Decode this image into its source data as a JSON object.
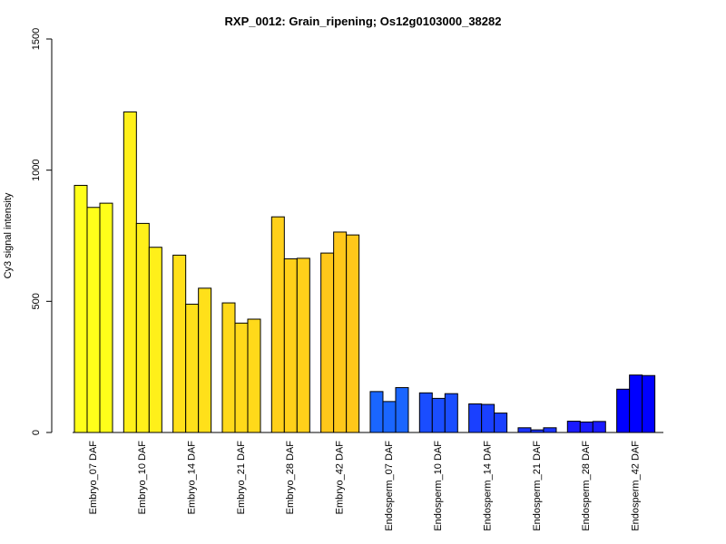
{
  "chart_data": {
    "type": "bar",
    "title": "RXP_0012: Grain_ripening; Os12g0103000_38282",
    "xlabel": "",
    "ylabel": "Cy3 signal intensity",
    "ylim": [
      0,
      1500
    ],
    "yticks": [
      0,
      500,
      1000,
      1500
    ],
    "grid": false,
    "legend": "none",
    "categories": [
      "Embryo_07 DAF",
      "Embryo_10 DAF",
      "Embryo_14 DAF",
      "Embryo_21 DAF",
      "Embryo_28 DAF",
      "Embryo_42 DAF",
      "Endosperm_07 DAF",
      "Endosperm_10 DAF",
      "Endosperm_14 DAF",
      "Endosperm_21 DAF",
      "Endosperm_28 DAF",
      "Endosperm_42 DAF"
    ],
    "category_colors": [
      "#ffff1a",
      "#fff01a",
      "#ffe01a",
      "#ffd91a",
      "#ffd01a",
      "#ffc81a",
      "#1a66ff",
      "#1a4dff",
      "#1a40ff",
      "#1a33ff",
      "#1a1aff",
      "#0000ff"
    ],
    "values": [
      [
        942,
        858,
        874
      ],
      [
        1222,
        797,
        706
      ],
      [
        676,
        489,
        550
      ],
      [
        494,
        417,
        432
      ],
      [
        822,
        662,
        664
      ],
      [
        684,
        764,
        753
      ],
      [
        156,
        118,
        171
      ],
      [
        151,
        130,
        148
      ],
      [
        109,
        107,
        74
      ],
      [
        18,
        10,
        18
      ],
      [
        43,
        40,
        42
      ],
      [
        165,
        219,
        217
      ]
    ]
  }
}
